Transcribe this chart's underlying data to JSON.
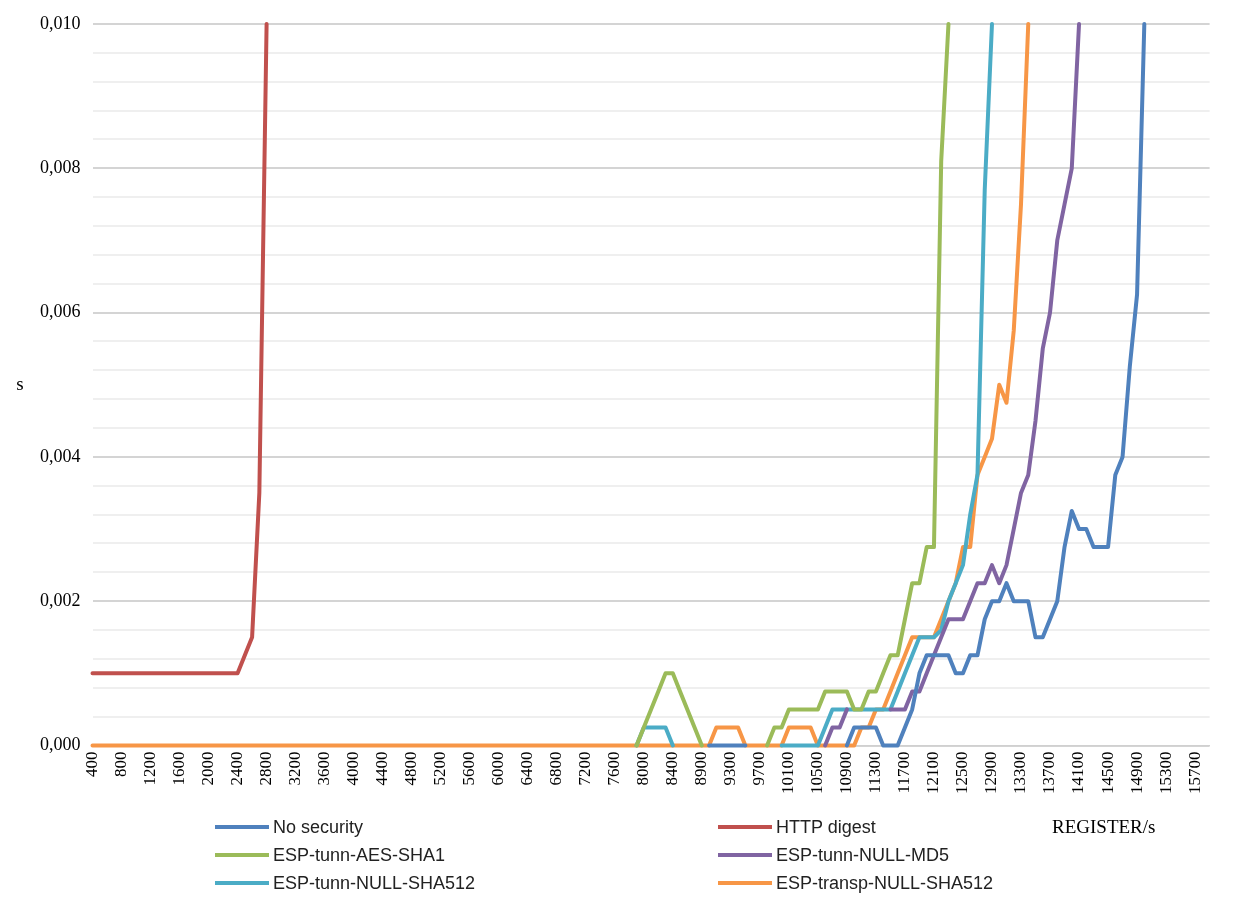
{
  "chart_data": {
    "type": "line",
    "xlabel": "REGISTER/s",
    "ylabel": "s",
    "grid": "y",
    "legend": "bottom",
    "ylim": [
      0,
      0.01
    ],
    "yticks": [
      {
        "value": 0,
        "label": "0,000"
      },
      {
        "value": 0.0004,
        "label": null
      },
      {
        "value": 0.0008,
        "label": null
      },
      {
        "value": 0.0012,
        "label": null
      },
      {
        "value": 0.0016,
        "label": null
      },
      {
        "value": 0.002,
        "label": "0,002"
      },
      {
        "value": 0.0024,
        "label": null
      },
      {
        "value": 0.0028,
        "label": null
      },
      {
        "value": 0.0032,
        "label": null
      },
      {
        "value": 0.0036,
        "label": null
      },
      {
        "value": 0.004,
        "label": "0,004"
      },
      {
        "value": 0.0044,
        "label": null
      },
      {
        "value": 0.0048,
        "label": null
      },
      {
        "value": 0.0052,
        "label": null
      },
      {
        "value": 0.0056,
        "label": null
      },
      {
        "value": 0.006,
        "label": "0,006"
      },
      {
        "value": 0.0064,
        "label": null
      },
      {
        "value": 0.0068,
        "label": null
      },
      {
        "value": 0.0072,
        "label": null
      },
      {
        "value": 0.0076,
        "label": null
      },
      {
        "value": 0.008,
        "label": "0,008"
      },
      {
        "value": 0.0084,
        "label": null
      },
      {
        "value": 0.0088,
        "label": null
      },
      {
        "value": 0.0092,
        "label": null
      },
      {
        "value": 0.0096,
        "label": null
      },
      {
        "value": 0.01,
        "label": "0,010"
      }
    ],
    "categories": [
      "400",
      null,
      null,
      null,
      "800",
      null,
      null,
      null,
      "1200",
      null,
      null,
      null,
      "1600",
      null,
      null,
      null,
      "2000",
      null,
      null,
      null,
      "2400",
      null,
      null,
      null,
      "2800",
      null,
      null,
      null,
      "3200",
      null,
      null,
      null,
      "3600",
      null,
      null,
      null,
      "4000",
      null,
      null,
      null,
      "4400",
      null,
      null,
      null,
      "4800",
      null,
      null,
      null,
      "5200",
      null,
      null,
      null,
      "5600",
      null,
      null,
      null,
      "6000",
      null,
      null,
      null,
      "6400",
      null,
      null,
      null,
      "6800",
      null,
      null,
      null,
      "7200",
      null,
      null,
      null,
      "7600",
      null,
      null,
      null,
      "8000",
      null,
      null,
      null,
      "8400",
      null,
      null,
      null,
      "8900",
      null,
      null,
      null,
      "9300",
      null,
      null,
      null,
      "9700",
      null,
      null,
      null,
      "10100",
      null,
      null,
      null,
      "10500",
      null,
      null,
      null,
      "10900",
      null,
      null,
      null,
      "11300",
      null,
      null,
      null,
      "11700",
      null,
      null,
      null,
      "12100",
      null,
      null,
      null,
      "12500",
      null,
      null,
      null,
      "12900",
      null,
      null,
      null,
      "13300",
      null,
      null,
      null,
      "13700",
      null,
      null,
      null,
      "14100",
      null,
      null,
      null,
      "14500",
      null,
      null,
      null,
      "14900",
      null,
      null,
      null,
      "15300",
      null,
      null,
      null,
      "15700",
      null,
      null
    ],
    "series": [
      {
        "name": "No security",
        "color": "#4f81bd",
        "values": [
          null,
          null,
          null,
          null,
          null,
          null,
          null,
          null,
          null,
          null,
          null,
          null,
          null,
          null,
          null,
          null,
          null,
          null,
          null,
          null,
          null,
          null,
          null,
          null,
          null,
          null,
          null,
          null,
          null,
          null,
          null,
          null,
          null,
          null,
          null,
          null,
          null,
          null,
          null,
          null,
          null,
          null,
          null,
          null,
          null,
          null,
          null,
          null,
          null,
          null,
          null,
          null,
          null,
          null,
          null,
          null,
          null,
          null,
          null,
          null,
          null,
          null,
          null,
          null,
          null,
          null,
          null,
          null,
          null,
          null,
          null,
          null,
          null,
          null,
          null,
          null,
          null,
          null,
          null,
          null,
          null,
          null,
          null,
          null,
          null,
          0,
          0,
          0,
          0,
          0,
          0,
          null,
          null,
          null,
          null,
          null,
          null,
          null,
          null,
          null,
          null,
          null,
          null,
          null,
          0,
          0.00025,
          0.00025,
          0.00025,
          0.00025,
          0,
          0,
          0,
          0.00025,
          0.0005,
          0.001,
          0.00125,
          0.00125,
          0.00125,
          0.00125,
          0.001,
          0.001,
          0.00125,
          0.00125,
          0.00175,
          0.002,
          0.002,
          0.00225,
          0.002,
          0.002,
          0.002,
          0.0015,
          0.0015,
          0.00175,
          0.002,
          0.00275,
          0.00325,
          0.003,
          0.003,
          0.00275,
          0.00275,
          0.00275,
          0.00375,
          0.004,
          0.00525,
          0.00625,
          0.01,
          null,
          null,
          null,
          null,
          null,
          null,
          null,
          null,
          null
        ]
      },
      {
        "name": "HTTP digest",
        "color": "#c0504d",
        "values": [
          0.001,
          0.001,
          0.001,
          0.001,
          0.001,
          0.001,
          0.001,
          0.001,
          0.001,
          0.001,
          0.001,
          0.001,
          0.001,
          0.001,
          0.001,
          0.001,
          0.001,
          0.001,
          0.001,
          0.001,
          0.001,
          0.00125,
          0.0015,
          0.0035,
          0.01,
          null,
          null,
          null,
          null,
          null,
          null,
          null,
          null,
          null,
          null,
          null,
          null,
          null,
          null,
          null,
          null,
          null,
          null,
          null,
          null,
          null,
          null,
          null,
          null,
          null,
          null,
          null,
          null,
          null,
          null,
          null,
          null,
          null,
          null,
          null,
          null,
          null,
          null,
          null,
          null,
          null,
          null,
          null,
          null,
          null,
          null,
          null,
          null,
          null,
          null,
          null,
          null,
          null,
          null,
          null,
          null,
          null,
          null,
          null,
          null,
          null,
          null,
          null,
          null,
          null,
          null,
          null,
          null,
          null,
          null,
          null,
          null,
          null,
          null,
          null,
          null,
          null,
          null,
          null,
          null,
          null,
          null,
          null,
          null,
          null,
          null,
          null,
          null,
          null,
          null,
          null,
          null,
          null,
          null,
          null,
          null,
          null,
          null,
          null,
          null,
          null,
          null,
          null,
          null,
          null,
          null,
          null,
          null,
          null,
          null,
          null,
          null,
          null,
          null,
          null,
          null,
          null,
          null,
          null,
          null,
          null,
          null,
          null,
          null,
          null,
          null,
          null,
          null,
          null,
          null
        ]
      },
      {
        "name": "ESP-tunn-AES-SHA1",
        "color": "#9bbb59",
        "values": [
          null,
          null,
          null,
          null,
          null,
          null,
          null,
          null,
          null,
          null,
          null,
          null,
          null,
          null,
          null,
          null,
          null,
          null,
          null,
          null,
          null,
          null,
          null,
          null,
          null,
          null,
          null,
          null,
          null,
          null,
          null,
          null,
          null,
          null,
          null,
          null,
          null,
          null,
          null,
          null,
          null,
          null,
          null,
          null,
          null,
          null,
          null,
          null,
          null,
          null,
          null,
          null,
          null,
          null,
          null,
          null,
          null,
          null,
          null,
          null,
          null,
          null,
          null,
          null,
          null,
          null,
          null,
          null,
          null,
          null,
          null,
          null,
          null,
          null,
          null,
          0,
          0.00025,
          0.0005,
          0.00075,
          0.001,
          0.001,
          0.00075,
          0.0005,
          0.00025,
          0,
          null,
          null,
          null,
          null,
          null,
          null,
          null,
          null,
          0,
          0.00025,
          0.00025,
          0.0005,
          0.0005,
          0.0005,
          0.0005,
          0.0005,
          0.00075,
          0.00075,
          0.00075,
          0.00075,
          0.0005,
          0.0005,
          0.00075,
          0.00075,
          0.001,
          0.00125,
          0.00125,
          0.00175,
          0.00225,
          0.00225,
          0.00275,
          0.00275,
          0.0081,
          0.01,
          null,
          null,
          null,
          null,
          null,
          null,
          null,
          null,
          null,
          null,
          null,
          null,
          null,
          null,
          null,
          null,
          null,
          null,
          null,
          null,
          null,
          null,
          null,
          null,
          null,
          null,
          null,
          null,
          null,
          null,
          null,
          null,
          null,
          null,
          null,
          null
        ]
      },
      {
        "name": "ESP-tunn-NULL-MD5",
        "color": "#8064a2",
        "values": [
          null,
          null,
          null,
          null,
          null,
          null,
          null,
          null,
          null,
          null,
          null,
          null,
          null,
          null,
          null,
          null,
          null,
          null,
          null,
          null,
          null,
          null,
          null,
          null,
          null,
          null,
          null,
          null,
          null,
          null,
          null,
          null,
          null,
          null,
          null,
          null,
          null,
          null,
          null,
          null,
          null,
          null,
          null,
          null,
          null,
          null,
          null,
          null,
          null,
          null,
          null,
          null,
          null,
          null,
          null,
          null,
          null,
          null,
          null,
          null,
          null,
          null,
          null,
          null,
          null,
          null,
          null,
          null,
          null,
          null,
          null,
          null,
          null,
          null,
          null,
          null,
          null,
          null,
          null,
          null,
          null,
          null,
          null,
          null,
          null,
          null,
          null,
          null,
          null,
          null,
          null,
          null,
          null,
          null,
          null,
          null,
          null,
          null,
          null,
          null,
          null,
          0,
          0.00025,
          0.00025,
          0.0005,
          null,
          null,
          null,
          null,
          null,
          0.0005,
          0.0005,
          0.0005,
          0.00075,
          0.00075,
          0.001,
          0.00125,
          0.0015,
          0.00175,
          0.00175,
          0.00175,
          0.002,
          0.00225,
          0.00225,
          0.0025,
          0.00225,
          0.0025,
          0.003,
          0.0035,
          0.00375,
          0.0045,
          0.0055,
          0.006,
          0.007,
          0.0075,
          0.008,
          0.01,
          null,
          null,
          null,
          null,
          null,
          null,
          null,
          null,
          null,
          null,
          null,
          null,
          null,
          null,
          null,
          null,
          null,
          null
        ]
      },
      {
        "name": "ESP-tunn-NULL-SHA512",
        "color": "#4bacc6",
        "values": [
          null,
          null,
          null,
          null,
          null,
          null,
          null,
          null,
          null,
          null,
          null,
          null,
          null,
          null,
          null,
          null,
          null,
          null,
          null,
          null,
          null,
          null,
          null,
          null,
          null,
          null,
          null,
          null,
          null,
          null,
          null,
          null,
          null,
          null,
          null,
          null,
          null,
          null,
          null,
          null,
          null,
          null,
          null,
          null,
          null,
          null,
          null,
          null,
          null,
          null,
          null,
          null,
          null,
          null,
          null,
          null,
          null,
          null,
          null,
          null,
          null,
          null,
          null,
          null,
          null,
          null,
          null,
          null,
          null,
          null,
          null,
          null,
          null,
          null,
          null,
          0,
          0.00025,
          0.00025,
          0.00025,
          0.00025,
          0,
          null,
          null,
          null,
          null,
          null,
          null,
          null,
          null,
          null,
          null,
          null,
          null,
          null,
          null,
          0,
          0,
          0,
          0,
          0,
          0,
          0.00025,
          0.0005,
          0.0005,
          0.0005,
          0.0005,
          0.0005,
          0.0005,
          0.0005,
          0.0005,
          0.0005,
          0.00075,
          0.001,
          0.00125,
          0.0015,
          0.0015,
          0.0015,
          0.0016,
          0.002,
          0.00225,
          0.0025,
          0.0032,
          0.00375,
          0.0077,
          0.01,
          null,
          null,
          null,
          null,
          null,
          null,
          null,
          null,
          null,
          null,
          null,
          null,
          null,
          null,
          null,
          null,
          null,
          null,
          null,
          null,
          null,
          null,
          null,
          null,
          null,
          null,
          null,
          null,
          null,
          null
        ]
      },
      {
        "name": "ESP-transp-NULL-SHA512",
        "color": "#f79646",
        "values": [
          0,
          0,
          0,
          0,
          0,
          0,
          0,
          0,
          0,
          0,
          0,
          0,
          0,
          0,
          0,
          0,
          0,
          0,
          0,
          0,
          0,
          0,
          0,
          0,
          0,
          0,
          0,
          0,
          0,
          0,
          0,
          0,
          0,
          0,
          0,
          0,
          0,
          0,
          0,
          0,
          0,
          0,
          0,
          0,
          0,
          0,
          0,
          0,
          0,
          0,
          0,
          0,
          0,
          0,
          0,
          0,
          0,
          0,
          0,
          0,
          0,
          0,
          0,
          0,
          0,
          0,
          0,
          0,
          0,
          0,
          0,
          0,
          0,
          0,
          0,
          0,
          0,
          0,
          0,
          0,
          0,
          0,
          0,
          0,
          0,
          0,
          0.00025,
          0.00025,
          0.00025,
          0.00025,
          0,
          0,
          0,
          0,
          0,
          0,
          0.00025,
          0.00025,
          0.00025,
          0.00025,
          0,
          0,
          0,
          0,
          0,
          0,
          0.00025,
          0.00025,
          0.0005,
          0.0005,
          0.00075,
          0.001,
          0.00125,
          0.0015,
          0.0015,
          0.0015,
          0.0015,
          0.00175,
          0.002,
          0.00225,
          0.00275,
          0.00275,
          0.00375,
          0.004,
          0.00425,
          0.005,
          0.00475,
          0.00575,
          0.0075,
          0.01,
          null,
          null,
          null,
          null,
          null,
          null,
          null,
          null,
          null,
          null,
          null,
          null,
          null,
          null,
          null,
          null,
          null,
          null,
          null,
          null,
          null,
          null,
          null,
          null,
          null
        ]
      }
    ]
  }
}
